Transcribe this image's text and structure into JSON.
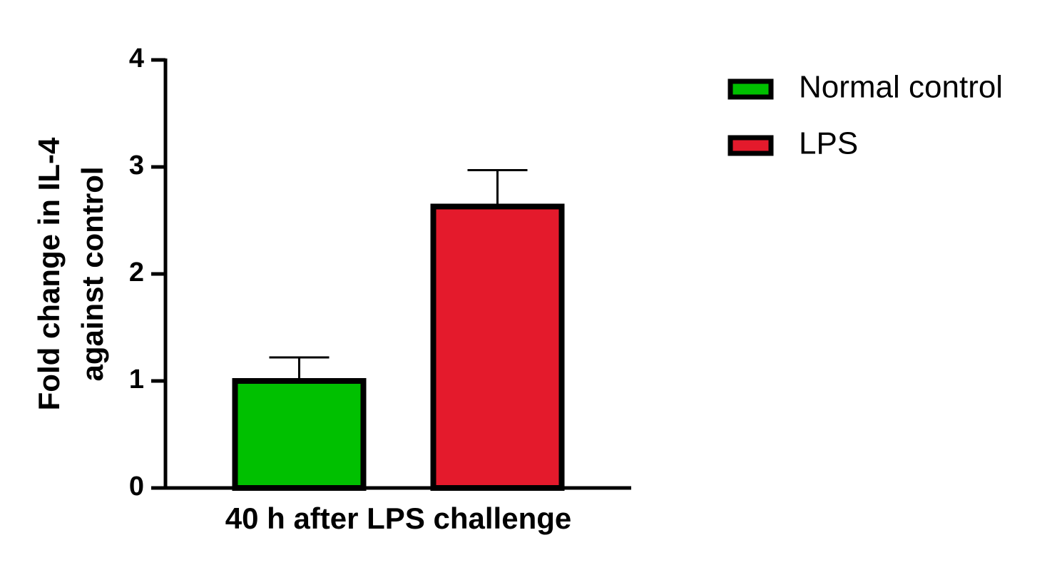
{
  "chart_data": {
    "type": "bar",
    "y_label": [
      "Fold change in IL-4",
      "against control"
    ],
    "categories": [
      "40 h after LPS challenge"
    ],
    "series": [
      {
        "name": "Normal control",
        "color": "#00c000",
        "values": [
          1.0
        ],
        "errors": [
          0.22
        ]
      },
      {
        "name": "LPS",
        "color": "#e41a2c",
        "values": [
          2.63
        ],
        "errors": [
          0.34
        ]
      }
    ],
    "ylim": [
      0,
      4
    ],
    "yticks": [
      0,
      1,
      2,
      3,
      4
    ],
    "error_bars": "upper",
    "legend": "right"
  }
}
